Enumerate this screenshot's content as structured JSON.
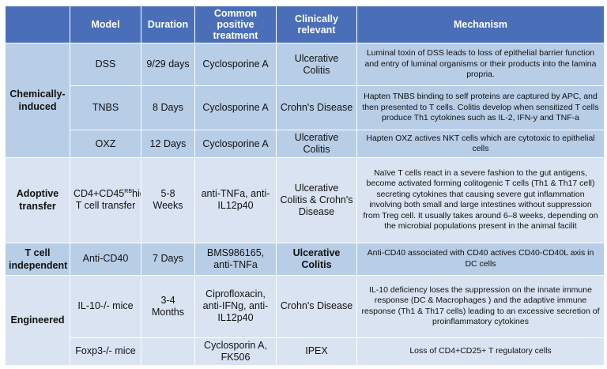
{
  "headers": [
    "Model",
    "Duration",
    "Common positive treatment",
    "Clinically relevant",
    "Mechanism"
  ],
  "groups": {
    "chemical": "Chemically-induced",
    "adoptive": "Adoptive transfer",
    "tcell": "T cell independent",
    "engineered": "Engineered"
  },
  "rows": [
    {
      "model": "DSS",
      "duration": "9/29 days",
      "treatment": "Cyclosporine A",
      "clinical": "Ulcerative Colitis",
      "mechanism": "Luminal toxin of DSS leads to loss of epithelial barrier function and entry of luminal organisms or their products into the lamina propria."
    },
    {
      "model": "TNBS",
      "duration": "8 Days",
      "treatment": "Cyclosporine A",
      "clinical": "Crohn's Disease",
      "mechanism": "Hapten TNBS binding to self proteins are captured by APC, and then presented to T cells. Colitis develop when sensitized T cells produce Th1 cytokines such as IL-2, IFN-y and TNF-a"
    },
    {
      "model": "OXZ",
      "duration": "12 Days",
      "treatment": "Cyclosporine A",
      "clinical": "Ulcerative Colitis",
      "mechanism": "Hapten OXZ actives NKT cells which are cytotoxic to epithelial cells"
    },
    {
      "model_prefix": "CD4+CD45",
      "model_sup": "RB",
      "model_suffix": "high T cell transfer",
      "duration": "5-8 Weeks",
      "treatment": "anti-TNFa, anti-IL12p40",
      "clinical": "Ulcerative Colitis & Crohn's Disease",
      "mechanism": "Naïve T cells react in a severe fashion to the gut antigens, become activated forming colitogenic T cells (Th1 & Th17 cell) secreting cytokines that causing severe gut inflammation involving both small and large intestines without suppression from Treg cell. It usually takes around 6–8 weeks, depending on the microbial populations present in the animal facilit"
    },
    {
      "model": "Anti-CD40",
      "duration": "7 Days",
      "treatment": "BMS986165, anti-TNFa",
      "clinical": "Ulcerative Colitis",
      "mechanism": "Anti-CD40 associated with CD40 actives CD40-CD40L axis in DC cells"
    },
    {
      "model": "IL-10-/- mice",
      "duration": "3-4 Months",
      "treatment": "Ciprofloxacin, anti-IFNg, anti-IL12p40",
      "clinical": "Crohn's Disease",
      "mechanism": "IL-10 deficiency loses the suppression on the innate immune response (DC & Macrophages ) and the adaptive immune response (Th1 & Th17 cells) leading to an excessive secretion of proinflammatory cytokines"
    },
    {
      "model": "Foxp3-/- mice",
      "duration": "",
      "treatment": "Cyclosporin A, FK506",
      "clinical": "IPEX",
      "mechanism": "Loss of CD4+CD25+ T regulatory cells"
    }
  ]
}
